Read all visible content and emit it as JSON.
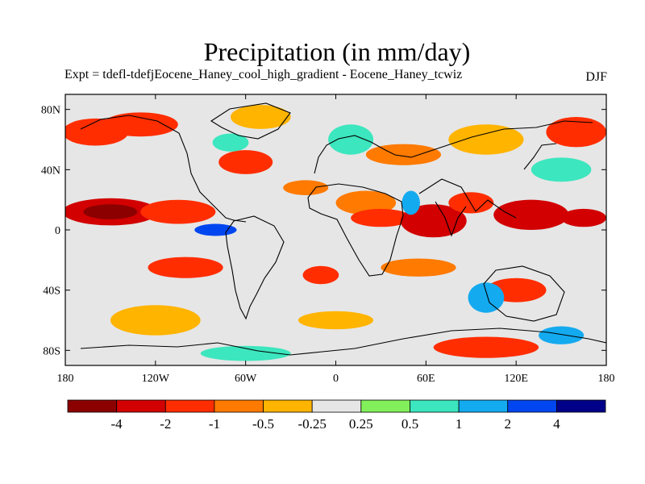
{
  "title": "Precipitation (in mm/day)",
  "subtitle": "Expt = tdefl-tdefjEocene_Haney_cool_high_gradient - Eocene_Haney_tcwiz",
  "season": "DJF",
  "map": {
    "type": "contour-fill",
    "projection": "cylindrical-equidistant",
    "lon_range": [
      -180,
      180
    ],
    "lat_range": [
      -90,
      90
    ],
    "background_color": "#e6e6e6",
    "lat_ticks": [
      {
        "value": 80,
        "label": "80N"
      },
      {
        "value": 40,
        "label": "40N"
      },
      {
        "value": 0,
        "label": "0"
      },
      {
        "value": -40,
        "label": "40S"
      },
      {
        "value": -80,
        "label": "80S"
      }
    ],
    "lon_ticks": [
      {
        "value": -180,
        "label": "180"
      },
      {
        "value": -120,
        "label": "120W"
      },
      {
        "value": -60,
        "label": "60W"
      },
      {
        "value": 0,
        "label": "0"
      },
      {
        "value": 60,
        "label": "60E"
      },
      {
        "value": 120,
        "label": "120E"
      },
      {
        "value": 180,
        "label": "180"
      }
    ]
  },
  "colorbar": {
    "colors": [
      "#8c0000",
      "#d20000",
      "#ff2d00",
      "#ff7a00",
      "#ffb400",
      "#e6e6e6",
      "#82f05a",
      "#3ce6be",
      "#14aaf0",
      "#0046f0",
      "#000088"
    ],
    "labels": [
      "-4",
      "-2",
      "-1",
      "-0.5",
      "-0.25",
      "0.25",
      "0.5",
      "1",
      "2",
      "4"
    ]
  },
  "chart_data": {
    "type": "heatmap",
    "title": "Precipitation (in mm/day)",
    "subtitle": "Expt = tdefl-tdefjEocene_Haney_cool_high_gradient - Eocene_Haney_tcwiz",
    "x_range": [
      -180,
      180
    ],
    "y_range": [
      -90,
      90
    ],
    "levels": [
      -4,
      -2,
      -1,
      -0.5,
      -0.25,
      0.25,
      0.5,
      1,
      2,
      4
    ],
    "regions": [
      {
        "lon": -150,
        "lat": 12,
        "rlon": 32,
        "rlat": 9,
        "value": -2.5
      },
      {
        "lon": -150,
        "lat": 12,
        "rlon": 18,
        "rlat": 5,
        "value": -5
      },
      {
        "lon": -105,
        "lat": 12,
        "rlon": 25,
        "rlat": 8,
        "value": -1.5
      },
      {
        "lon": -160,
        "lat": 65,
        "rlon": 22,
        "rlat": 9,
        "value": -1.5
      },
      {
        "lon": -130,
        "lat": 70,
        "rlon": 25,
        "rlat": 8,
        "value": -1.5
      },
      {
        "lon": -60,
        "lat": 45,
        "rlon": 18,
        "rlat": 8,
        "value": -1.5
      },
      {
        "lon": -50,
        "lat": 75,
        "rlon": 20,
        "rlat": 8,
        "value": -0.3
      },
      {
        "lon": -80,
        "lat": 0,
        "rlon": 14,
        "rlat": 4,
        "value": 2.5
      },
      {
        "lon": -100,
        "lat": -25,
        "rlon": 25,
        "rlat": 7,
        "value": -1.5
      },
      {
        "lon": -120,
        "lat": -60,
        "rlon": 30,
        "rlat": 10,
        "value": -0.3
      },
      {
        "lon": -70,
        "lat": 58,
        "rlon": 12,
        "rlat": 6,
        "value": 0.7
      },
      {
        "lon": -20,
        "lat": 28,
        "rlon": 15,
        "rlat": 5,
        "value": -0.7
      },
      {
        "lon": 20,
        "lat": 18,
        "rlon": 20,
        "rlat": 8,
        "value": -0.7
      },
      {
        "lon": 30,
        "lat": 8,
        "rlon": 20,
        "rlat": 6,
        "value": -1.5
      },
      {
        "lon": 65,
        "lat": 6,
        "rlon": 22,
        "rlat": 11,
        "value": -2.5
      },
      {
        "lon": 50,
        "lat": 18,
        "rlon": 6,
        "rlat": 8,
        "value": 1.5
      },
      {
        "lon": 10,
        "lat": 60,
        "rlon": 15,
        "rlat": 10,
        "value": 0.7
      },
      {
        "lon": 45,
        "lat": 50,
        "rlon": 25,
        "rlat": 7,
        "value": -0.7
      },
      {
        "lon": -10,
        "lat": -30,
        "rlon": 12,
        "rlat": 6,
        "value": -1.5
      },
      {
        "lon": 55,
        "lat": -25,
        "rlon": 25,
        "rlat": 6,
        "value": -0.7
      },
      {
        "lon": 90,
        "lat": 18,
        "rlon": 15,
        "rlat": 7,
        "value": -1.5
      },
      {
        "lon": 130,
        "lat": 10,
        "rlon": 25,
        "rlat": 10,
        "value": -2.5
      },
      {
        "lon": 165,
        "lat": 8,
        "rlon": 15,
        "rlat": 6,
        "value": -2.5
      },
      {
        "lon": 150,
        "lat": 40,
        "rlon": 20,
        "rlat": 8,
        "value": 0.7
      },
      {
        "lon": 160,
        "lat": 65,
        "rlon": 20,
        "rlat": 10,
        "value": -1.5
      },
      {
        "lon": 100,
        "lat": 60,
        "rlon": 25,
        "rlat": 10,
        "value": -0.3
      },
      {
        "lon": 120,
        "lat": -40,
        "rlon": 20,
        "rlat": 8,
        "value": -1.5
      },
      {
        "lon": 100,
        "lat": -45,
        "rlon": 12,
        "rlat": 10,
        "value": 1.5
      },
      {
        "lon": 150,
        "lat": -70,
        "rlon": 15,
        "rlat": 6,
        "value": 1.5
      },
      {
        "lon": 100,
        "lat": -78,
        "rlon": 35,
        "rlat": 7,
        "value": -1.5
      },
      {
        "lon": -60,
        "lat": -82,
        "rlon": 30,
        "rlat": 5,
        "value": 0.7
      },
      {
        "lon": 0,
        "lat": -60,
        "rlon": 25,
        "rlat": 6,
        "value": -0.3
      }
    ]
  }
}
